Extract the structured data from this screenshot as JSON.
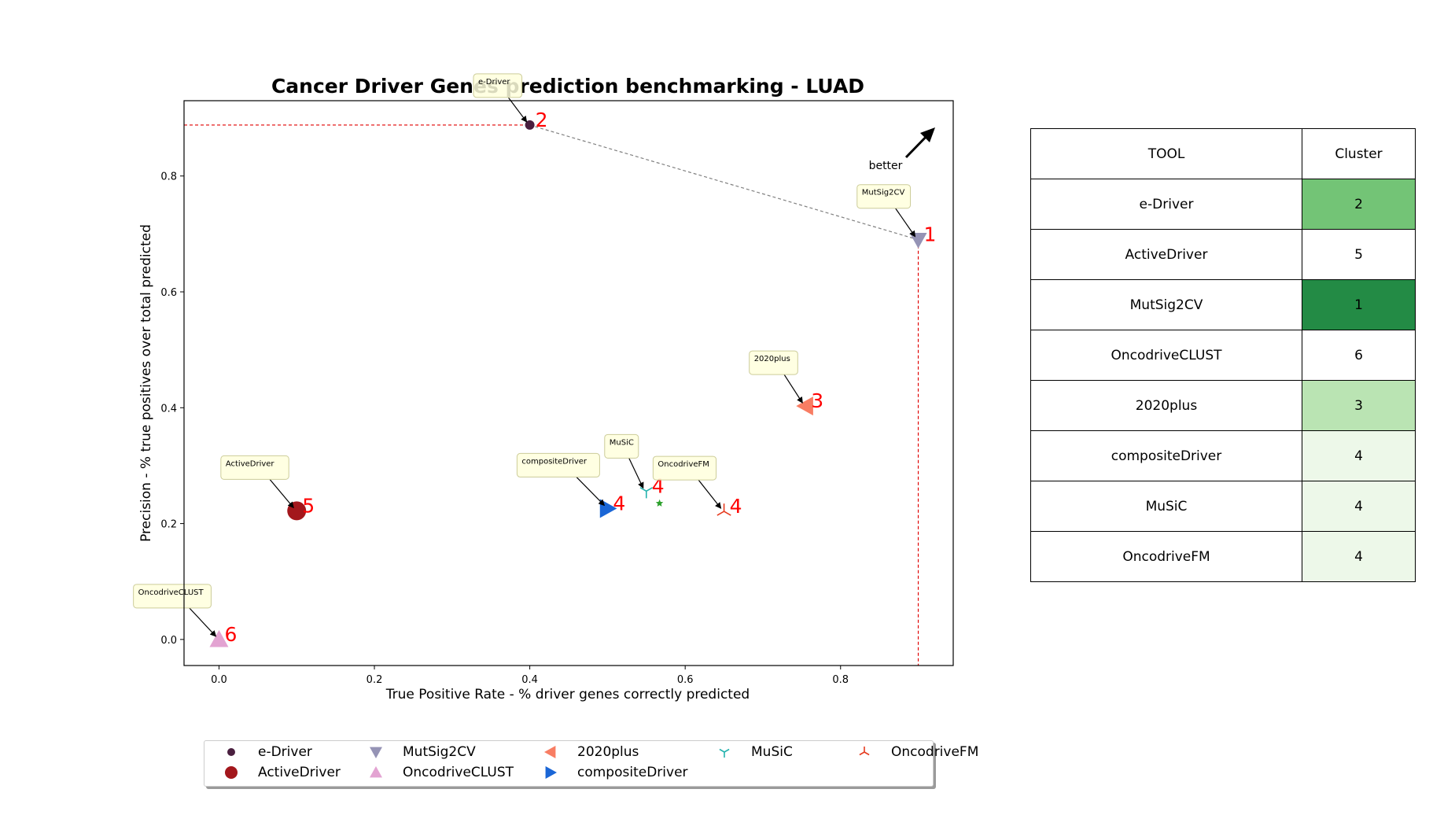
{
  "chart_data": {
    "type": "scatter",
    "title": "Cancer Driver Genes prediction benchmarking - LUAD",
    "xlabel": "True Positive Rate - % driver genes correctly predicted",
    "ylabel": "Precision - % true positives over total predicted",
    "xlim": [
      -0.045,
      0.945
    ],
    "ylim": [
      -0.045,
      0.93
    ],
    "xticks": [
      0.0,
      0.2,
      0.4,
      0.6,
      0.8
    ],
    "yticks": [
      0.0,
      0.2,
      0.4,
      0.6,
      0.8
    ],
    "xtick_labels": [
      "0.0",
      "0.2",
      "0.4",
      "0.6",
      "0.8"
    ],
    "ytick_labels": [
      "0.0",
      "0.2",
      "0.4",
      "0.6",
      "0.8"
    ],
    "grid": false,
    "legend_position": "below",
    "annotation_better": "better",
    "pareto_frontier": [
      {
        "x": 0.4,
        "y": 0.888
      },
      {
        "x": 0.9,
        "y": 0.69
      }
    ],
    "optimal_point": {
      "x": 0.4,
      "y": 0.888
    },
    "series": [
      {
        "name": "e-Driver",
        "x": 0.4,
        "y": 0.888,
        "cluster": "2",
        "marker": "circle",
        "color": "#4a1f3f"
      },
      {
        "name": "MutSig2CV",
        "x": 0.9,
        "y": 0.69,
        "cluster": "1",
        "marker": "triangle-down",
        "color": "#9593b5"
      },
      {
        "name": "2020plus",
        "x": 0.755,
        "y": 0.403,
        "cluster": "3",
        "marker": "triangle-left",
        "color": "#f87d63"
      },
      {
        "name": "MuSiC",
        "x": 0.55,
        "y": 0.256,
        "cluster": "4",
        "marker": "tri-down",
        "color": "#25b3ae"
      },
      {
        "name": "OncodriveFM",
        "x": 0.65,
        "y": 0.221,
        "cluster": "4",
        "marker": "tri-up",
        "color": "#e63c20"
      },
      {
        "name": "ActiveDriver",
        "x": 0.1,
        "y": 0.222,
        "cluster": "5",
        "marker": "circle",
        "color": "#a3171c"
      },
      {
        "name": "OncodriveCLUST",
        "x": 0.0,
        "y": 0.0,
        "cluster": "6",
        "marker": "triangle-up",
        "color": "#e3a3d2"
      },
      {
        "name": "compositeDriver",
        "x": 0.5,
        "y": 0.226,
        "cluster": "4",
        "marker": "triangle-right",
        "color": "#1a66d6"
      }
    ],
    "extra_points": [
      {
        "x": 0.567,
        "y": 0.235,
        "color": "#2ca02c",
        "marker": "star"
      }
    ]
  },
  "table": {
    "headers": [
      "TOOL",
      "Cluster"
    ],
    "rows": [
      {
        "tool": "e-Driver",
        "cluster": "2",
        "color": "#73c476"
      },
      {
        "tool": "ActiveDriver",
        "cluster": "5",
        "color": "#ffffff"
      },
      {
        "tool": "MutSig2CV",
        "cluster": "1",
        "color": "#238b45"
      },
      {
        "tool": "OncodriveCLUST",
        "cluster": "6",
        "color": "#ffffff"
      },
      {
        "tool": "2020plus",
        "cluster": "3",
        "color": "#bae4b3"
      },
      {
        "tool": "compositeDriver",
        "cluster": "4",
        "color": "#edf8e9"
      },
      {
        "tool": "MuSiC",
        "cluster": "4",
        "color": "#edf8e9"
      },
      {
        "tool": "OncodriveFM",
        "cluster": "4",
        "color": "#edf8e9"
      }
    ]
  },
  "legend": [
    {
      "label": "e-Driver",
      "marker": "circle-small",
      "color": "#4a1f3f"
    },
    {
      "label": "ActiveDriver",
      "marker": "circle",
      "color": "#a3171c"
    },
    {
      "label": "MutSig2CV",
      "marker": "triangle-down",
      "color": "#9593b5"
    },
    {
      "label": "OncodriveCLUST",
      "marker": "triangle-up",
      "color": "#e3a3d2"
    },
    {
      "label": "2020plus",
      "marker": "triangle-left",
      "color": "#f87d63"
    },
    {
      "label": "compositeDriver",
      "marker": "triangle-right",
      "color": "#1a66d6"
    },
    {
      "label": "MuSiC",
      "marker": "tri-down",
      "color": "#25b3ae"
    },
    {
      "label": "OncodriveFM",
      "marker": "tri-up",
      "color": "#e63c20"
    }
  ]
}
